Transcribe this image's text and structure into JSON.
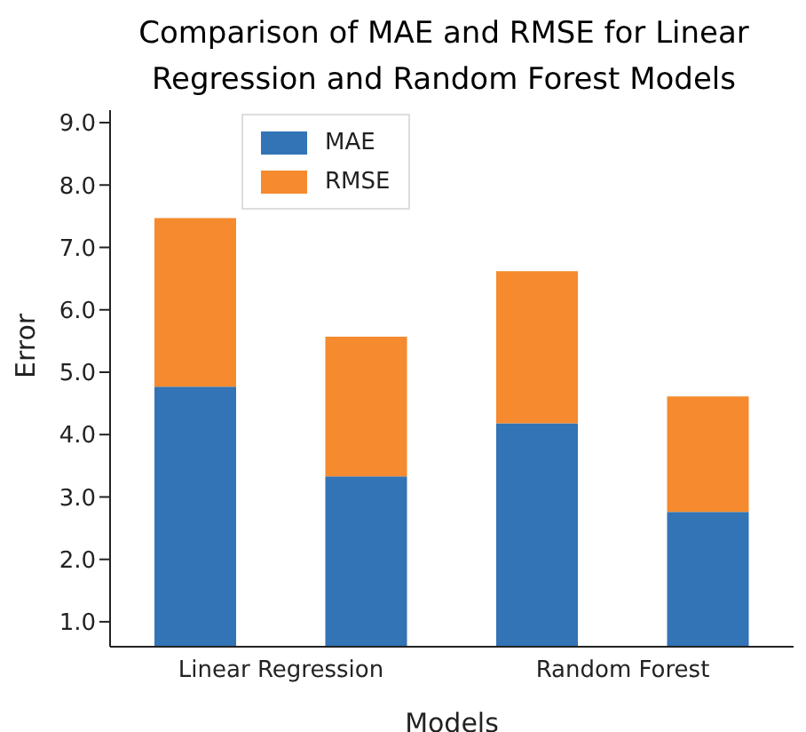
{
  "chart_data": {
    "type": "bar",
    "title": "Comparison of MAE and RMSE for Linear Regression and Random Forest Models",
    "xlabel": "Models",
    "ylabel": "Error",
    "categories": [
      null,
      null,
      null,
      null
    ],
    "stacked": true,
    "annotations": [
      "Linear Regression",
      "Random Forest"
    ],
    "series": [
      {
        "name": "MAE",
        "color": "#3274b5",
        "values": [
          4.77,
          3.33,
          4.18,
          2.76
        ]
      },
      {
        "name": "RMSE",
        "color": "#f58a2e",
        "values": [
          2.7,
          2.24,
          2.44,
          1.85
        ]
      }
    ],
    "ylim": [
      0.6,
      9.2
    ],
    "yticks": [
      {
        "value": 1,
        "label": "1.0"
      },
      {
        "value": 2,
        "label": "2.0"
      },
      {
        "value": 3,
        "label": "3.0"
      },
      {
        "value": 4,
        "label": "4.0"
      },
      {
        "value": 5,
        "label": "5.0"
      },
      {
        "value": 6,
        "label": "6.0"
      },
      {
        "value": 7,
        "label": "7.0"
      },
      {
        "value": 8,
        "label": "8.0"
      },
      {
        "value": 9,
        "label": "9.0"
      }
    ],
    "legend": "top left",
    "grid": false
  }
}
